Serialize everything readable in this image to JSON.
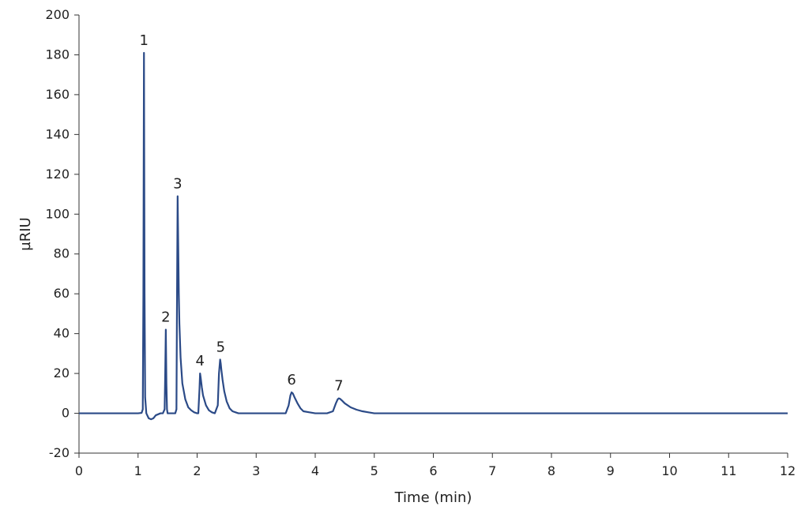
{
  "chart_data": {
    "type": "line",
    "title": "",
    "xlabel": "Time (min)",
    "ylabel": "µRIU",
    "xlim": [
      0,
      12
    ],
    "ylim": [
      -20,
      200
    ],
    "xticks": [
      0,
      1,
      2,
      3,
      4,
      5,
      6,
      7,
      8,
      9,
      10,
      11,
      12
    ],
    "yticks": [
      -20,
      0,
      20,
      40,
      60,
      80,
      100,
      120,
      140,
      160,
      180,
      200
    ],
    "grid": false,
    "legend": "none",
    "line_color": "#2b4a87",
    "series": [
      {
        "x": [
          0,
          1.0,
          1.06,
          1.08,
          1.09,
          1.1,
          1.11,
          1.12,
          1.14,
          1.18,
          1.22,
          1.26,
          1.3,
          1.34,
          1.38,
          1.42,
          1.45,
          1.46,
          1.47,
          1.48,
          1.49,
          1.5,
          1.52,
          1.55,
          1.6,
          1.63,
          1.65,
          1.66,
          1.67,
          1.68,
          1.69,
          1.7,
          1.72,
          1.75,
          1.8,
          1.85,
          1.9,
          1.95,
          2.0,
          2.02,
          2.04,
          2.05,
          2.06,
          2.08,
          2.1,
          2.15,
          2.2,
          2.25,
          2.3,
          2.35,
          2.37,
          2.39,
          2.4,
          2.41,
          2.43,
          2.46,
          2.5,
          2.55,
          2.6,
          2.65,
          2.7,
          2.8,
          3.0,
          3.5,
          3.55,
          3.58,
          3.6,
          3.62,
          3.65,
          3.7,
          3.75,
          3.8,
          3.9,
          4.0,
          4.2,
          4.3,
          4.35,
          4.38,
          4.4,
          4.42,
          4.45,
          4.5,
          4.6,
          4.7,
          4.8,
          4.9,
          5.0,
          6.0,
          7.0,
          8.0,
          9.0,
          10.0,
          11.0,
          12.0
        ],
        "y": [
          0,
          0,
          0.2,
          2,
          60,
          181,
          60,
          8,
          0,
          -2.5,
          -3,
          -2.5,
          -1,
          -0.5,
          0,
          0,
          2,
          20,
          42,
          15,
          2,
          0,
          0,
          0,
          0,
          0,
          2,
          60,
          109,
          85,
          60,
          45,
          28,
          15,
          7,
          3,
          1.5,
          0.5,
          0,
          0,
          12,
          20,
          18,
          13,
          9,
          4,
          1.5,
          0.5,
          0,
          4,
          20,
          27,
          25,
          22,
          17,
          11,
          6,
          2.5,
          1,
          0.5,
          0,
          0,
          0,
          0,
          4,
          9,
          10.5,
          10,
          8,
          5,
          2.5,
          1,
          0.5,
          0,
          0,
          1,
          5,
          7,
          7.5,
          7.3,
          6.5,
          5,
          3,
          1.8,
          1,
          0.5,
          0,
          0,
          0,
          0,
          0,
          0,
          0,
          0
        ]
      }
    ],
    "annotations": [
      {
        "text": "1",
        "x": 1.1,
        "y": 181
      },
      {
        "text": "2",
        "x": 1.47,
        "y": 42
      },
      {
        "text": "3",
        "x": 1.67,
        "y": 109
      },
      {
        "text": "4",
        "x": 2.05,
        "y": 20
      },
      {
        "text": "5",
        "x": 2.4,
        "y": 27
      },
      {
        "text": "6",
        "x": 3.6,
        "y": 10.5
      },
      {
        "text": "7",
        "x": 4.4,
        "y": 7.5
      }
    ]
  }
}
